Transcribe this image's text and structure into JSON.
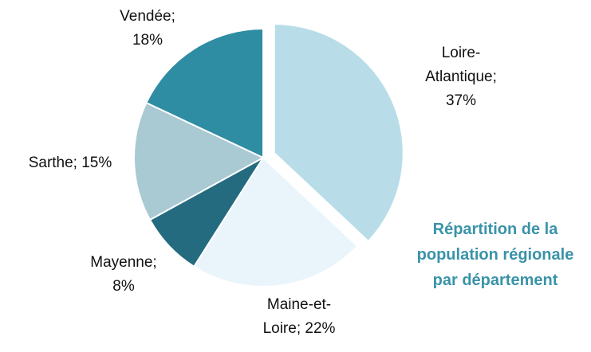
{
  "chart_data": {
    "type": "pie",
    "title": "Répartition de la population régionale par département",
    "values": [
      37,
      22,
      8,
      15,
      18
    ],
    "value_labels": [
      [
        "Loire-",
        "Atlantique;",
        "37%"
      ],
      [
        "Maine-et-",
        "Loire; 22%"
      ],
      [
        "Mayenne;",
        "8%"
      ],
      [
        "Sarthe; 15%"
      ],
      [
        "Vendée;",
        "18%"
      ]
    ],
    "colors": [
      "#b8dde9",
      "#eaf5fb",
      "#256b80",
      "#a9c9d3",
      "#2e8ca3"
    ],
    "title_color": "#3a93a8"
  }
}
